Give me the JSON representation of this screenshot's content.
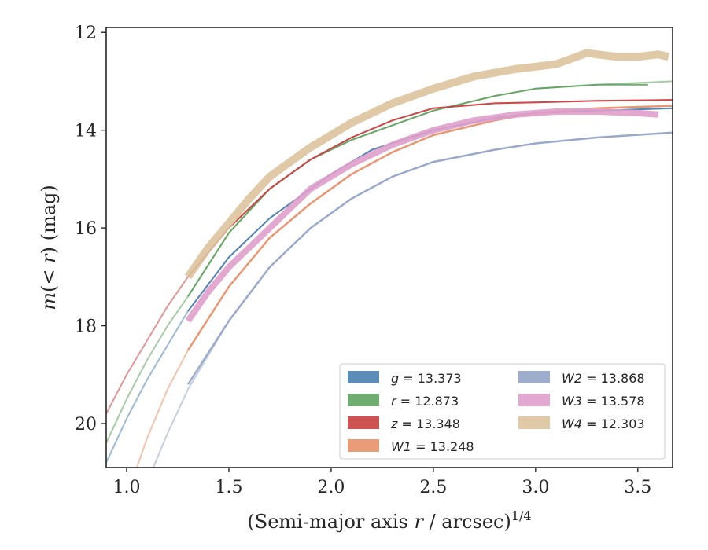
{
  "chart_data": {
    "type": "line",
    "xlabel_prefix": "(Semi-major axis ",
    "xlabel_var": "r",
    "xlabel_mid": " / arcsec)",
    "xlabel_sup": "1/4",
    "ylabel_pre": "m",
    "ylabel_paren_open": "(< ",
    "ylabel_var": "r",
    "ylabel_paren_close": ")",
    "ylabel_unit": " (mag)",
    "xlim": [
      0.9,
      3.67
    ],
    "ylim": [
      20.9,
      11.9
    ],
    "y_inverted": true,
    "xticks": [
      1.0,
      1.5,
      2.0,
      2.5,
      3.0,
      3.5
    ],
    "xtick_labels": [
      "1.0",
      "1.5",
      "2.0",
      "2.5",
      "3.0",
      "3.5"
    ],
    "yticks": [
      12,
      14,
      16,
      18,
      20
    ],
    "ytick_labels": [
      "12",
      "14",
      "16",
      "18",
      "20"
    ],
    "grid": false,
    "legend_position": "lower-right",
    "series": [
      {
        "name_var": "g",
        "name_val": "13.373",
        "color": "#4c7fb0",
        "line": {
          "x": [
            0.9,
            1.0,
            1.1,
            1.2,
            1.3,
            1.5,
            1.7,
            2.0,
            2.2,
            2.5,
            2.8,
            3.0,
            3.3,
            3.67
          ],
          "y": [
            20.8,
            19.9,
            19.1,
            18.4,
            17.7,
            16.6,
            15.8,
            14.9,
            14.4,
            14.0,
            13.75,
            13.65,
            13.6,
            13.55
          ]
        },
        "band": {
          "x": [
            1.3,
            1.5,
            1.7,
            2.0,
            2.2,
            2.5,
            2.8,
            3.0,
            3.3,
            3.67
          ],
          "y": [
            17.7,
            16.6,
            15.8,
            14.9,
            14.4,
            14.0,
            13.75,
            13.65,
            13.6,
            13.55
          ],
          "width": 2
        }
      },
      {
        "name_var": "r",
        "name_val": "12.873",
        "color": "#5fa35f",
        "line": {
          "x": [
            0.9,
            1.0,
            1.1,
            1.2,
            1.3,
            1.5,
            1.7,
            1.9,
            2.1,
            2.3,
            2.5,
            2.8,
            3.0,
            3.3,
            3.67
          ],
          "y": [
            20.4,
            19.5,
            18.7,
            18.0,
            17.4,
            16.1,
            15.2,
            14.6,
            14.2,
            13.9,
            13.6,
            13.3,
            13.15,
            13.07,
            13.0
          ]
        },
        "band": {
          "x": [
            1.3,
            1.5,
            1.7,
            1.9,
            2.1,
            2.3,
            2.5,
            2.8,
            3.0,
            3.3,
            3.55
          ],
          "y": [
            17.4,
            16.1,
            15.2,
            14.6,
            14.2,
            13.9,
            13.6,
            13.3,
            13.15,
            13.07,
            13.07
          ],
          "width": 2
        }
      },
      {
        "name_var": "z",
        "name_val": "13.348",
        "color": "#c94040",
        "line": {
          "x": [
            0.9,
            1.0,
            1.1,
            1.2,
            1.3,
            1.5,
            1.7,
            1.9,
            2.1,
            2.3,
            2.5,
            2.8,
            3.0,
            3.3,
            3.67
          ],
          "y": [
            19.8,
            19.0,
            18.3,
            17.6,
            17.0,
            16.0,
            15.2,
            14.6,
            14.15,
            13.8,
            13.55,
            13.45,
            13.43,
            13.4,
            13.38
          ]
        },
        "band": {
          "x": [
            1.3,
            1.5,
            1.7,
            1.9,
            2.1,
            2.3,
            2.5,
            2.8,
            3.0,
            3.3,
            3.67
          ],
          "y": [
            17.0,
            16.0,
            15.2,
            14.6,
            14.15,
            13.8,
            13.55,
            13.45,
            13.43,
            13.4,
            13.38
          ],
          "width": 2
        }
      },
      {
        "name_var": "W1",
        "name_val": "13.248",
        "color": "#e8916a",
        "line": {
          "x": [
            1.05,
            1.1,
            1.2,
            1.3,
            1.5,
            1.7,
            1.9,
            2.1,
            2.3,
            2.5,
            2.8,
            3.0,
            3.3,
            3.67
          ],
          "y": [
            20.9,
            20.3,
            19.3,
            18.5,
            17.2,
            16.2,
            15.5,
            14.9,
            14.45,
            14.1,
            13.8,
            13.65,
            13.55,
            13.5
          ]
        },
        "band": {
          "x": [
            1.3,
            1.5,
            1.7,
            1.9,
            2.1,
            2.3,
            2.5,
            2.8,
            3.0,
            3.3,
            3.67
          ],
          "y": [
            18.5,
            17.2,
            16.2,
            15.5,
            14.9,
            14.45,
            14.1,
            13.8,
            13.65,
            13.55,
            13.5
          ],
          "width": 2.5
        }
      },
      {
        "name_var": "W2",
        "name_val": "13.868",
        "color": "#95a4c6",
        "line": {
          "x": [
            1.13,
            1.2,
            1.3,
            1.5,
            1.7,
            1.9,
            2.1,
            2.3,
            2.5,
            2.8,
            3.0,
            3.3,
            3.67
          ],
          "y": [
            20.9,
            20.2,
            19.3,
            17.9,
            16.8,
            16.0,
            15.4,
            14.95,
            14.65,
            14.4,
            14.27,
            14.15,
            14.05
          ]
        },
        "band": {
          "x": [
            1.3,
            1.5,
            1.7,
            1.9,
            2.1,
            2.3,
            2.5,
            2.8,
            3.0,
            3.3,
            3.67
          ],
          "y": [
            19.2,
            17.9,
            16.8,
            16.0,
            15.4,
            14.95,
            14.65,
            14.4,
            14.27,
            14.15,
            14.05
          ],
          "width": 2.5
        }
      },
      {
        "name_var": "W3",
        "name_val": "13.578",
        "color": "#df9fcb",
        "line": null,
        "band": {
          "x": [
            1.3,
            1.4,
            1.5,
            1.7,
            1.9,
            2.1,
            2.3,
            2.5,
            2.7,
            2.9,
            3.1,
            3.3,
            3.5,
            3.6
          ],
          "y": [
            17.9,
            17.3,
            16.8,
            16.0,
            15.2,
            14.7,
            14.3,
            14.0,
            13.8,
            13.68,
            13.62,
            13.62,
            13.65,
            13.68
          ],
          "width": 8
        }
      },
      {
        "name_var": "W4",
        "name_val": "12.303",
        "color": "#dbc39c",
        "line": null,
        "band": {
          "x": [
            1.3,
            1.4,
            1.5,
            1.6,
            1.7,
            1.9,
            2.1,
            2.3,
            2.5,
            2.7,
            2.9,
            3.1,
            3.2,
            3.25,
            3.3,
            3.4,
            3.5,
            3.6,
            3.65
          ],
          "y": [
            17.0,
            16.4,
            15.9,
            15.4,
            14.95,
            14.35,
            13.85,
            13.45,
            13.15,
            12.9,
            12.75,
            12.65,
            12.5,
            12.42,
            12.45,
            12.5,
            12.5,
            12.45,
            12.5
          ],
          "width": 10
        }
      }
    ]
  }
}
